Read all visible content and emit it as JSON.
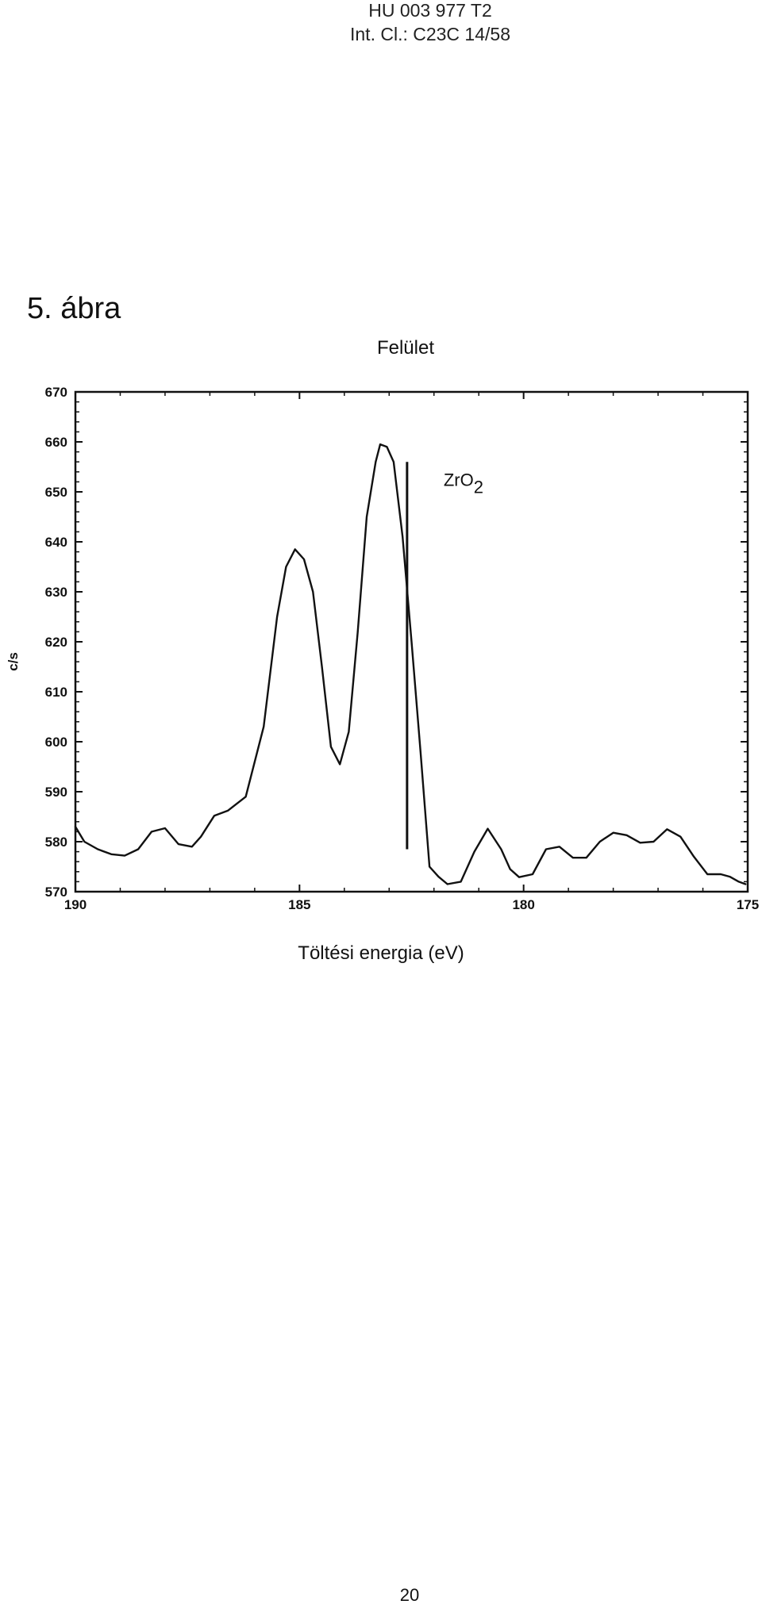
{
  "header": {
    "doc_number": "HU 003 977 T2",
    "classification": "Int. Cl.: C23C 14/58"
  },
  "figure_label": "5. ábra",
  "page_number": "20",
  "chart_data": {
    "type": "line",
    "title": "Felület",
    "xlabel": "Töltési energia (eV)",
    "ylabel": "c/s",
    "xlim": [
      190,
      175
    ],
    "ylim": [
      570,
      670
    ],
    "x_reversed": true,
    "x_ticks": [
      "190",
      "185",
      "180",
      "175"
    ],
    "y_ticks": [
      "570",
      "580",
      "590",
      "600",
      "610",
      "620",
      "630",
      "640",
      "650",
      "660",
      "670"
    ],
    "grid": false,
    "annotation": {
      "label": "ZrO",
      "subscript": "2",
      "x": 182.6,
      "y_top": 656,
      "y_bottom": 578.5
    },
    "series": [
      {
        "x": [
          190,
          189.8,
          189.5,
          189.2,
          188.9,
          188.6,
          188.3,
          188.0,
          187.7,
          187.4,
          187.2,
          186.9,
          186.6,
          186.2,
          185.8,
          185.5,
          185.3,
          185.1,
          184.9,
          184.7,
          184.5,
          184.3,
          184.1,
          183.9,
          183.7,
          183.5,
          183.3,
          183.2,
          183.05,
          182.9,
          182.7,
          182.5,
          182.3,
          182.1,
          181.9,
          181.7,
          181.4,
          181.1,
          180.8,
          180.5,
          180.3,
          180.1,
          179.8,
          179.5,
          179.2,
          178.9,
          178.6,
          178.3,
          178.0,
          177.7,
          177.4,
          177.1,
          176.8,
          176.5,
          176.2,
          175.9,
          175.6,
          175.4,
          175.2,
          175.05
        ],
        "y": [
          583,
          580,
          578.5,
          577.5,
          577.2,
          578.5,
          582,
          582.7,
          579.5,
          579,
          581,
          585.2,
          586.2,
          589,
          603,
          625,
          635,
          638.5,
          636.5,
          630,
          615,
          599,
          595.5,
          602,
          622,
          645,
          656,
          659.5,
          659,
          656,
          641,
          620,
          598,
          575,
          573,
          571.5,
          572,
          578,
          582.6,
          578.5,
          574.5,
          572.9,
          573.5,
          578.5,
          579,
          576.8,
          576.8,
          580,
          581.8,
          581.3,
          579.8,
          580,
          582.5,
          581,
          577,
          573.5,
          573.5,
          573,
          572,
          571.5
        ]
      }
    ]
  }
}
